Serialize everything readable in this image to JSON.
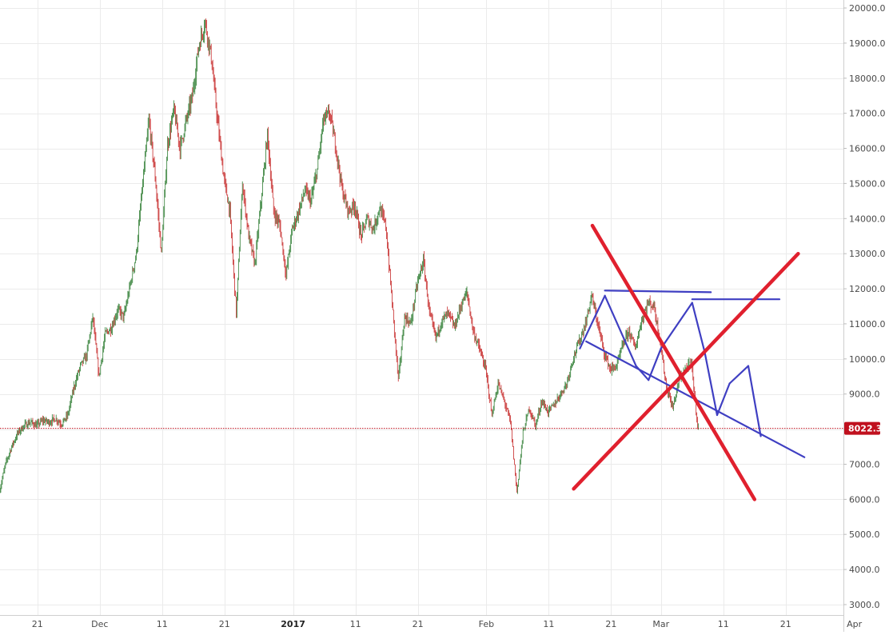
{
  "chart_data": {
    "type": "candlestick",
    "ylim": [
      2600,
      20300
    ],
    "y_ticks": [
      "3000.0",
      "4000.0",
      "5000.0",
      "6000.0",
      "7000.0",
      "8000.0",
      "9000.0",
      "10000.0",
      "11000.0",
      "12000.0",
      "13000.0",
      "14000.0",
      "15000.0",
      "16000.0",
      "17000.0",
      "18000.0",
      "19000.0",
      "20000.0"
    ],
    "x_labels": [
      {
        "label": "21",
        "day": 20
      },
      {
        "label": "Dec",
        "day": 30
      },
      {
        "label": "11",
        "day": 40
      },
      {
        "label": "21",
        "day": 50
      },
      {
        "label": "2017",
        "day": 61,
        "bold": true
      },
      {
        "label": "11",
        "day": 71
      },
      {
        "label": "21",
        "day": 81
      },
      {
        "label": "Feb",
        "day": 92
      },
      {
        "label": "11",
        "day": 102
      },
      {
        "label": "21",
        "day": 112
      },
      {
        "label": "Mar",
        "day": 120
      },
      {
        "label": "11",
        "day": 130
      },
      {
        "label": "21",
        "day": 140
      },
      {
        "label": "Apr",
        "day": 151
      }
    ],
    "current_price": {
      "value": 8022.3,
      "label": "8022.3"
    },
    "price_path": [
      [
        14,
        6200
      ],
      [
        15,
        7000
      ],
      [
        16,
        7500
      ],
      [
        17,
        7900
      ],
      [
        18,
        8100
      ],
      [
        19,
        8200
      ],
      [
        20,
        8100
      ],
      [
        21,
        8250
      ],
      [
        22,
        8200
      ],
      [
        23,
        8300
      ],
      [
        24,
        8150
      ],
      [
        25,
        8400
      ],
      [
        26,
        9200
      ],
      [
        27,
        9800
      ],
      [
        28,
        10100
      ],
      [
        29,
        11200
      ],
      [
        30,
        9500
      ],
      [
        31,
        10700
      ],
      [
        32,
        10900
      ],
      [
        33,
        11400
      ],
      [
        34,
        11200
      ],
      [
        35,
        12100
      ],
      [
        36,
        13000
      ],
      [
        37,
        15000
      ],
      [
        38,
        16800
      ],
      [
        39,
        15200
      ],
      [
        40,
        13000
      ],
      [
        41,
        16100
      ],
      [
        42,
        17100
      ],
      [
        43,
        16000
      ],
      [
        44,
        16800
      ],
      [
        45,
        17500
      ],
      [
        46,
        18900
      ],
      [
        47,
        19600
      ],
      [
        48,
        18600
      ],
      [
        49,
        16800
      ],
      [
        50,
        15200
      ],
      [
        51,
        14200
      ],
      [
        52,
        11300
      ],
      [
        53,
        15000
      ],
      [
        54,
        13500
      ],
      [
        55,
        12700
      ],
      [
        56,
        14500
      ],
      [
        57,
        16400
      ],
      [
        58,
        14200
      ],
      [
        59,
        13800
      ],
      [
        60,
        12400
      ],
      [
        61,
        13700
      ],
      [
        62,
        14200
      ],
      [
        63,
        14800
      ],
      [
        64,
        14500
      ],
      [
        65,
        15400
      ],
      [
        66,
        16800
      ],
      [
        67,
        17000
      ],
      [
        68,
        16000
      ],
      [
        69,
        14800
      ],
      [
        70,
        14200
      ],
      [
        71,
        14400
      ],
      [
        72,
        13500
      ],
      [
        73,
        14000
      ],
      [
        74,
        13700
      ],
      [
        75,
        14300
      ],
      [
        76,
        13800
      ],
      [
        77,
        11600
      ],
      [
        78,
        9400
      ],
      [
        79,
        11200
      ],
      [
        80,
        11000
      ],
      [
        81,
        12100
      ],
      [
        82,
        12800
      ],
      [
        83,
        11300
      ],
      [
        84,
        10600
      ],
      [
        85,
        11100
      ],
      [
        86,
        11300
      ],
      [
        87,
        10900
      ],
      [
        88,
        11500
      ],
      [
        89,
        11900
      ],
      [
        90,
        10800
      ],
      [
        91,
        10300
      ],
      [
        92,
        9700
      ],
      [
        93,
        8400
      ],
      [
        94,
        9300
      ],
      [
        95,
        8800
      ],
      [
        96,
        8200
      ],
      [
        97,
        6200
      ],
      [
        98,
        7900
      ],
      [
        99,
        8600
      ],
      [
        100,
        8100
      ],
      [
        101,
        8800
      ],
      [
        102,
        8500
      ],
      [
        103,
        8700
      ],
      [
        104,
        9000
      ],
      [
        105,
        9300
      ],
      [
        106,
        10000
      ],
      [
        107,
        10500
      ],
      [
        108,
        11000
      ],
      [
        109,
        11800
      ],
      [
        110,
        11000
      ],
      [
        111,
        10200
      ],
      [
        112,
        9700
      ],
      [
        113,
        9800
      ],
      [
        114,
        10400
      ],
      [
        115,
        10800
      ],
      [
        116,
        10300
      ],
      [
        117,
        11100
      ],
      [
        118,
        11600
      ],
      [
        119,
        11500
      ],
      [
        120,
        10500
      ],
      [
        121,
        9200
      ],
      [
        122,
        8600
      ],
      [
        123,
        9400
      ],
      [
        124,
        9700
      ],
      [
        125,
        9900
      ],
      [
        126,
        8100
      ]
    ],
    "drawings": {
      "blue_lines": [
        [
          [
            108,
            10500
          ],
          [
            143,
            7200
          ]
        ],
        [
          [
            107,
            10300
          ],
          [
            111,
            11800
          ]
        ],
        [
          [
            111,
            11800
          ],
          [
            116,
            9800
          ]
        ],
        [
          [
            116,
            9800
          ],
          [
            118,
            9400
          ]
        ],
        [
          [
            118,
            9400
          ],
          [
            120,
            10300
          ]
        ],
        [
          [
            120,
            10300
          ],
          [
            125,
            11600
          ]
        ],
        [
          [
            125,
            11600
          ],
          [
            127,
            10200
          ]
        ],
        [
          [
            127,
            10200
          ],
          [
            129,
            8400
          ]
        ],
        [
          [
            129,
            8400
          ],
          [
            131,
            9300
          ]
        ],
        [
          [
            131,
            9300
          ],
          [
            134,
            9800
          ]
        ],
        [
          [
            134,
            9800
          ],
          [
            136,
            7800
          ]
        ],
        [
          [
            111,
            11950
          ],
          [
            128,
            11900
          ]
        ],
        [
          [
            125,
            11700
          ],
          [
            139,
            11700
          ]
        ]
      ],
      "red_lines": [
        [
          [
            109,
            13800
          ],
          [
            135,
            6000
          ]
        ],
        [
          [
            106,
            6300
          ],
          [
            142,
            13000
          ]
        ]
      ]
    },
    "colors": {
      "up": "#2e7d32",
      "down": "#c62828",
      "blue_drawing": "#3f3fc2",
      "red_drawing": "#e0202e",
      "current_line": "#c0101e",
      "grid": "#ebebeb"
    },
    "grid": true
  }
}
